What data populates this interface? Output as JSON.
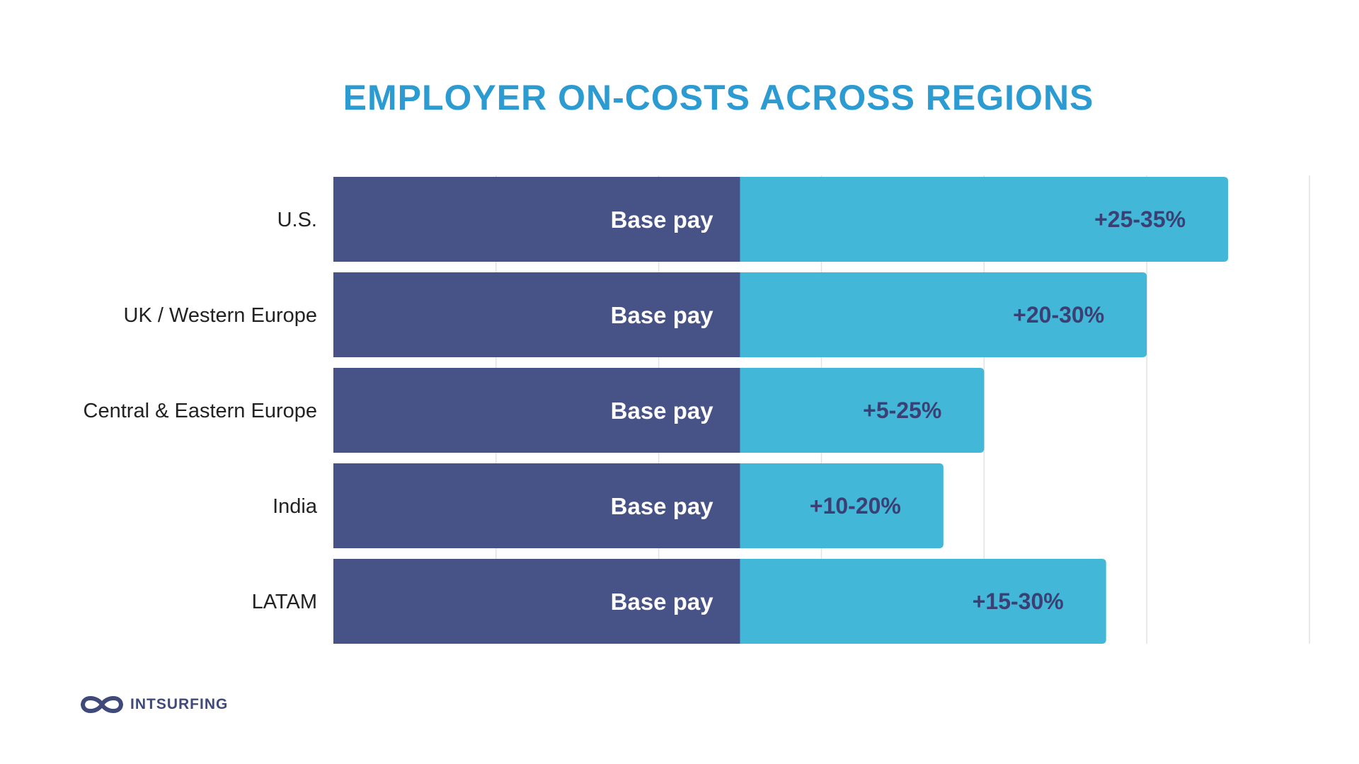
{
  "colors": {
    "title": "#2b9bd1",
    "base_bar": "#475286",
    "extra_bar": "#43b7d7",
    "extra_text": "#3b3f73",
    "grid": "#e2e2e2",
    "brand": "#3f4a7a"
  },
  "brand": {
    "name": "INTSURFING",
    "logo_icon": "infinity-loop-icon"
  },
  "chart_data": {
    "type": "bar",
    "orientation": "horizontal",
    "stacked": true,
    "title": "EMPLOYER ON-COSTS ACROSS REGIONS",
    "xlabel": "",
    "ylabel": "",
    "grid": true,
    "legend": "none",
    "categories": [
      "U.S.",
      "UK / Western Europe",
      "Central & Eastern Europe",
      "India",
      "LATAM"
    ],
    "series": [
      {
        "name": "Base pay",
        "values": [
          100,
          100,
          100,
          100,
          100
        ],
        "labels": [
          "Base pay",
          "Base pay",
          "Base pay",
          "Base pay",
          "Base pay"
        ]
      },
      {
        "name": "",
        "values": [
          120,
          100,
          60,
          50,
          90
        ],
        "labels": [
          "+25-35%",
          "+20-30%",
          "+5-25%",
          "+10-20%",
          "+15-30%"
        ]
      }
    ],
    "xlim": [
      0,
      240
    ],
    "grid_step": 40
  }
}
